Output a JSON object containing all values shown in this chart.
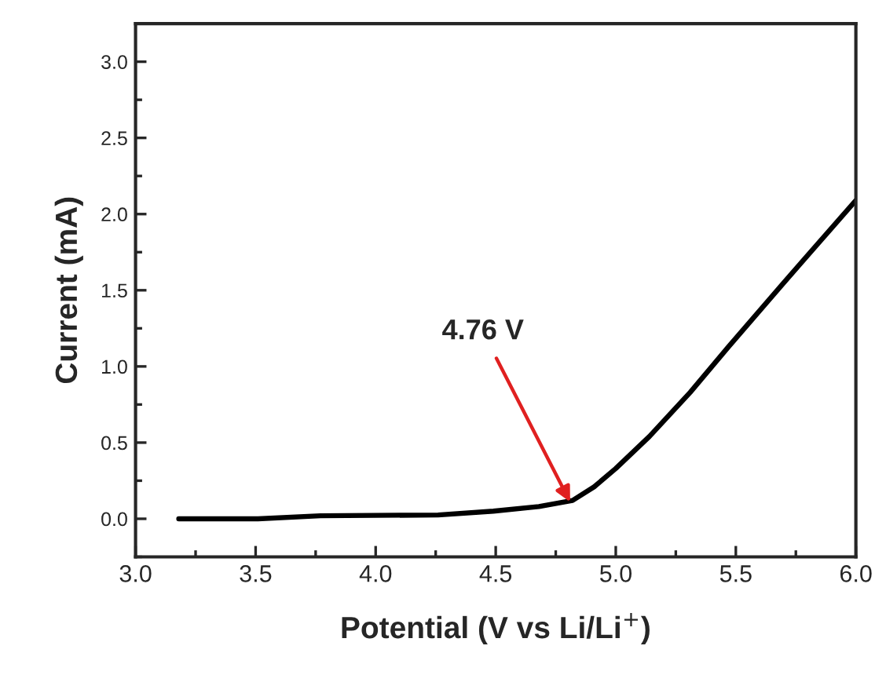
{
  "chart_data": {
    "type": "line",
    "xlabel": "Potential (V vs Li/Li$^{+}$)",
    "ylabel": "Current (mA)",
    "x": [
      3.18,
      3.51,
      3.77,
      4.26,
      4.49,
      4.68,
      4.82,
      4.91,
      5.0,
      5.14,
      5.31,
      5.47,
      5.7,
      6.0
    ],
    "series": [
      {
        "color": "#000000",
        "values": [
          0,
          0,
          0.02,
          0.025,
          0.05,
          0.08,
          0.12,
          0.21,
          0.33,
          0.54,
          0.83,
          1.13,
          1.55,
          2.09
        ]
      }
    ],
    "xlim": [
      3.0,
      6.0
    ],
    "ylim": [
      -0.25,
      3.25
    ],
    "xticks": [
      {
        "value": 3.0,
        "label": "3.0"
      },
      {
        "value": 3.5,
        "label": "3.5"
      },
      {
        "value": 4.0,
        "label": "4.0"
      },
      {
        "value": 4.5,
        "label": "4.5"
      },
      {
        "value": 5.0,
        "label": "5.0"
      },
      {
        "value": 5.5,
        "label": "5.5"
      },
      {
        "value": 6.0,
        "label": "6.0"
      }
    ],
    "yticks": [
      {
        "value": 0.0,
        "label": "0.0"
      },
      {
        "value": 0.5,
        "label": "0.5"
      },
      {
        "value": 1.0,
        "label": "1.0"
      },
      {
        "value": 1.5,
        "label": "1.5"
      },
      {
        "value": 2.0,
        "label": "2.0"
      },
      {
        "value": 2.5,
        "label": "2.5"
      },
      {
        "value": 3.0,
        "label": "3.0"
      }
    ],
    "annotations": [
      {
        "text": "4.76 V",
        "x": 4.81,
        "y": 0.11
      }
    ],
    "grid": false,
    "legend": false,
    "marker": "none",
    "line_style": "solid"
  }
}
